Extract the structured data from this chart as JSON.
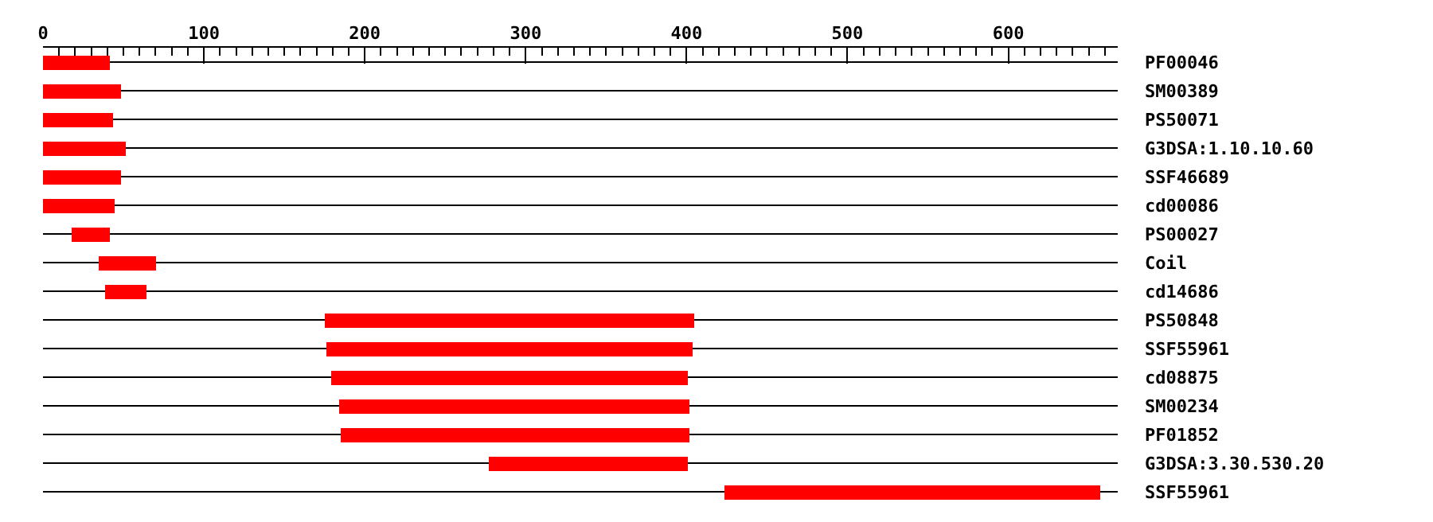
{
  "chart_data": {
    "type": "bar",
    "orientation": "horizontal",
    "categories": [
      "PF00046",
      "SM00389",
      "PS50071",
      "G3DSA:1.10.10.60",
      "SSF46689",
      "cd00086",
      "PS00027",
      "Coil",
      "cd14686",
      "PS50848",
      "SSF55961",
      "cd08875",
      "SM00234",
      "PF01852",
      "G3DSA:3.30.530.20",
      "SSF55961"
    ],
    "base": [
      0,
      0,
      0,
      0,
      0,
      0,
      18,
      35,
      39,
      175,
      176,
      179,
      184,
      185,
      277,
      424
    ],
    "values": [
      42,
      48,
      44,
      51,
      48,
      45,
      24,
      35,
      25,
      230,
      228,
      222,
      218,
      217,
      124,
      233
    ],
    "color": "#ff0000",
    "xlim": [
      0,
      668
    ],
    "xticks": [
      0,
      {
        "value": 10,
        "label": null
      },
      {
        "value": 20,
        "label": null
      },
      {
        "value": 30,
        "label": null
      },
      {
        "value": 40,
        "label": null
      },
      {
        "value": 50,
        "label": null
      },
      {
        "value": 60,
        "label": null
      },
      {
        "value": 70,
        "label": null
      },
      {
        "value": 80,
        "label": null
      },
      {
        "value": 90,
        "label": null
      },
      100,
      {
        "value": 110,
        "label": null
      },
      {
        "value": 120,
        "label": null
      },
      {
        "value": 130,
        "label": null
      },
      {
        "value": 140,
        "label": null
      },
      {
        "value": 150,
        "label": null
      },
      {
        "value": 160,
        "label": null
      },
      {
        "value": 170,
        "label": null
      },
      {
        "value": 180,
        "label": null
      },
      {
        "value": 190,
        "label": null
      },
      200,
      {
        "value": 210,
        "label": null
      },
      {
        "value": 220,
        "label": null
      },
      {
        "value": 230,
        "label": null
      },
      {
        "value": 240,
        "label": null
      },
      {
        "value": 250,
        "label": null
      },
      {
        "value": 260,
        "label": null
      },
      {
        "value": 270,
        "label": null
      },
      {
        "value": 280,
        "label": null
      },
      {
        "value": 290,
        "label": null
      },
      300,
      {
        "value": 310,
        "label": null
      },
      {
        "value": 320,
        "label": null
      },
      {
        "value": 330,
        "label": null
      },
      {
        "value": 340,
        "label": null
      },
      {
        "value": 350,
        "label": null
      },
      {
        "value": 360,
        "label": null
      },
      {
        "value": 370,
        "label": null
      },
      {
        "value": 380,
        "label": null
      },
      {
        "value": 390,
        "label": null
      },
      400,
      {
        "value": 410,
        "label": null
      },
      {
        "value": 420,
        "label": null
      },
      {
        "value": 430,
        "label": null
      },
      {
        "value": 440,
        "label": null
      },
      {
        "value": 450,
        "label": null
      },
      {
        "value": 460,
        "label": null
      },
      {
        "value": 470,
        "label": null
      },
      {
        "value": 480,
        "label": null
      },
      {
        "value": 490,
        "label": null
      },
      500,
      {
        "value": 510,
        "label": null
      },
      {
        "value": 520,
        "label": null
      },
      {
        "value": 530,
        "label": null
      },
      {
        "value": 540,
        "label": null
      },
      {
        "value": 550,
        "label": null
      },
      {
        "value": 560,
        "label": null
      },
      {
        "value": 570,
        "label": null
      },
      {
        "value": 580,
        "label": null
      },
      {
        "value": 590,
        "label": null
      },
      600,
      {
        "value": 610,
        "label": null
      },
      {
        "value": 620,
        "label": null
      },
      {
        "value": 630,
        "label": null
      },
      {
        "value": 640,
        "label": null
      },
      {
        "value": 650,
        "label": null
      },
      {
        "value": 660,
        "label": null
      }
    ],
    "grid": "y"
  }
}
